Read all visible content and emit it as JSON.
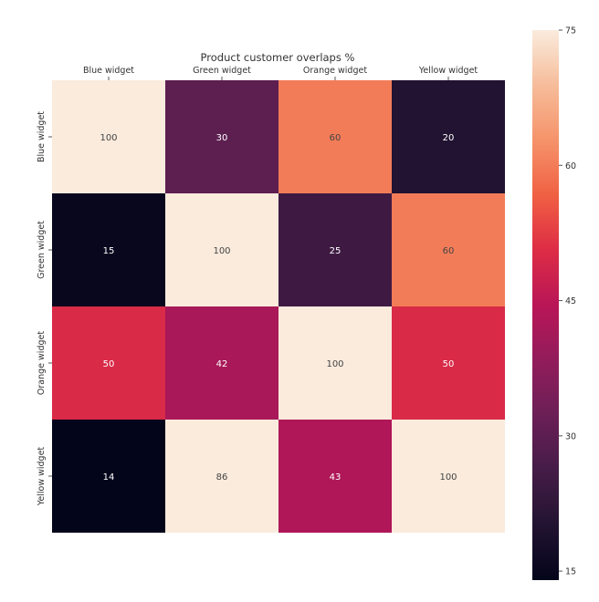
{
  "chart_data": {
    "type": "heatmap",
    "title": "Product customer overlaps %",
    "x_labels": [
      "Blue widget",
      "Green widget",
      "Orange widget",
      "Yellow widget"
    ],
    "y_labels": [
      "Blue widget",
      "Green widget",
      "Orange widget",
      "Yellow widget"
    ],
    "values": [
      [
        100,
        30,
        60,
        20
      ],
      [
        15,
        100,
        25,
        60
      ],
      [
        50,
        42,
        100,
        50
      ],
      [
        14,
        86,
        43,
        100
      ]
    ],
    "colormap": "rocket",
    "color_range": [
      14,
      75
    ],
    "colorbar_ticks": [
      15,
      30,
      45,
      60,
      75
    ],
    "x_axis_position": "top",
    "colorbar_position": "right"
  }
}
